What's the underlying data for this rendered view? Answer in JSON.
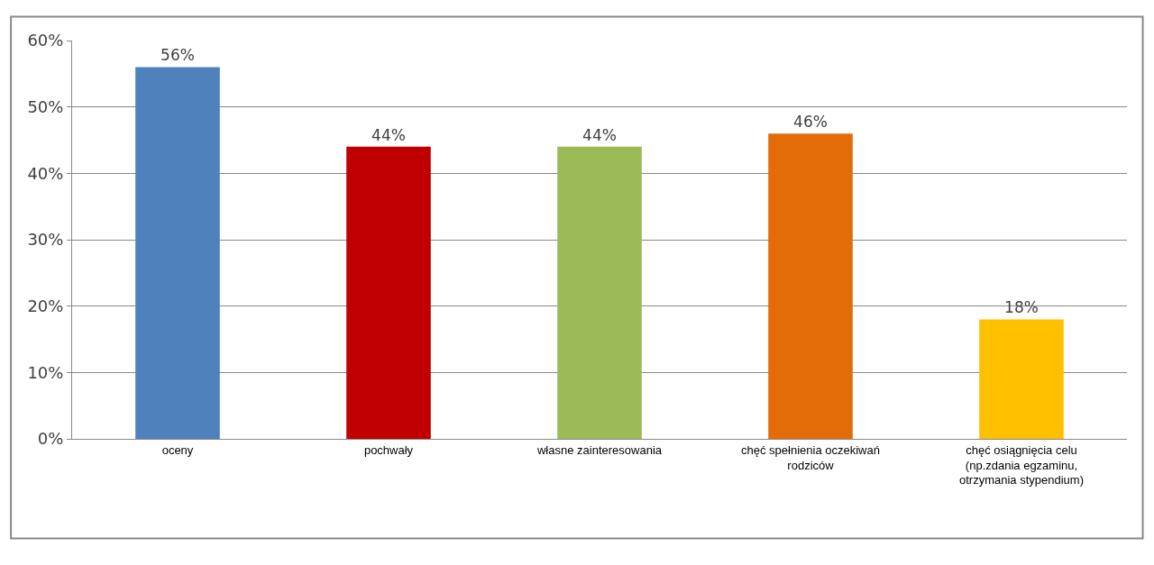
{
  "chart_data": {
    "type": "bar",
    "categories": [
      "oceny",
      "pochwały",
      "własne zainteresowania",
      "chęć spełnienia oczekiwań rodziców",
      "chęć osiągnięcia celu (np.zdania egzaminu, otrzymania stypendium)"
    ],
    "values": [
      56,
      44,
      44,
      46,
      18
    ],
    "colors": [
      "#4f81bd",
      "#c00000",
      "#9bbb59",
      "#e36c09",
      "#ffc000"
    ],
    "value_labels": [
      "56%",
      "44%",
      "44%",
      "46%",
      "18%"
    ],
    "ylim": [
      0,
      60
    ],
    "yticks": [
      {
        "value": 0,
        "label": "0%"
      },
      {
        "value": 10,
        "label": "10%"
      },
      {
        "value": 20,
        "label": "20%"
      },
      {
        "value": 30,
        "label": "30%"
      },
      {
        "value": 40,
        "label": "40%"
      },
      {
        "value": 50,
        "label": "50%"
      },
      {
        "value": 60,
        "label": "60%"
      }
    ],
    "grid": "y"
  }
}
